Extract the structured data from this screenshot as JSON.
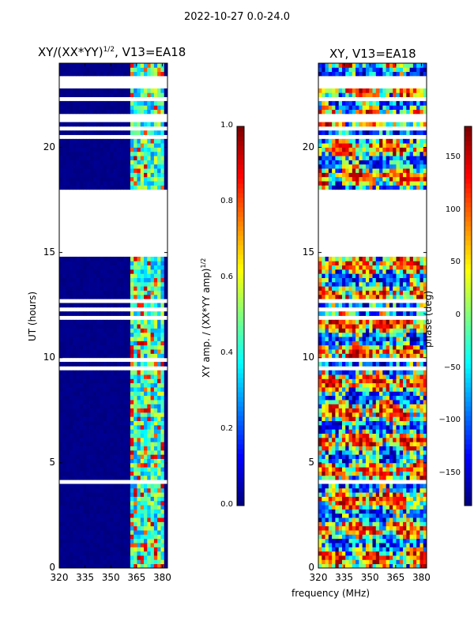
{
  "figure_title": "2022-10-27 0.0-24.0",
  "colors": {
    "jet_stops": [
      "#00007f",
      "#0000ff",
      "#007fff",
      "#00ffff",
      "#7fff7f",
      "#ffff00",
      "#ff7f00",
      "#ff0000",
      "#7f0000"
    ],
    "axis": "#000000",
    "background": "#ffffff"
  },
  "chart_data": [
    {
      "type": "heatmap",
      "title_main": "XY/(XX*YY)",
      "title_sup": "1/2",
      "title_rest": ", V13=EA18",
      "xlabel": "",
      "ylabel": "UT (hours)",
      "xlim": [
        320,
        383
      ],
      "ylim": [
        0,
        24
      ],
      "xticks": [
        320,
        335,
        350,
        365,
        380
      ],
      "yticks": [
        0,
        5,
        10,
        15,
        20
      ],
      "value_range": [
        0.0,
        1.0
      ],
      "structure": "Normalized XY amplitude: mostly near 0 (dark blue) for 320-362 MHz, with elevated 0.3-0.9 values in channels around 362-382 MHz; flagged (blank) rows including 14.9-18.0 h.",
      "flagged_time_ranges": [
        [
          14.9,
          18.0
        ],
        [
          22.1,
          22.3
        ],
        [
          21.2,
          21.6
        ],
        [
          23.0,
          23.3
        ]
      ],
      "active_frequency_range": [
        362,
        382
      ],
      "colorbar": {
        "label": "XY amp. / (XX*YY amp)",
        "label_sup": "1/2",
        "range": [
          0.0,
          1.0
        ],
        "ticks": [
          "0.0",
          "0.2",
          "0.4",
          "0.6",
          "0.8",
          "1.0"
        ]
      }
    },
    {
      "type": "heatmap",
      "title": "XY, V13=EA18",
      "xlabel": "frequency (MHz)",
      "ylabel": "",
      "xlim": [
        320,
        383
      ],
      "ylim": [
        0,
        24
      ],
      "xticks": [
        320,
        335,
        350,
        365,
        380
      ],
      "yticks": [
        0,
        5,
        10,
        15,
        20
      ],
      "value_range": [
        -180,
        180
      ],
      "structure": "XY phase across the full band: noisy mixture spanning -180 to 180 deg with banded structure; flagged (blank) rows including 14.9-18.0 h.",
      "flagged_time_ranges": [
        [
          14.9,
          18.0
        ],
        [
          22.1,
          22.3
        ],
        [
          21.2,
          21.6
        ],
        [
          23.0,
          23.3
        ]
      ],
      "colorbar": {
        "label": "phase (deg)",
        "range": [
          -180,
          180
        ],
        "ticks": [
          "−150",
          "−100",
          "−50",
          "0",
          "50",
          "100",
          "150"
        ]
      }
    }
  ]
}
